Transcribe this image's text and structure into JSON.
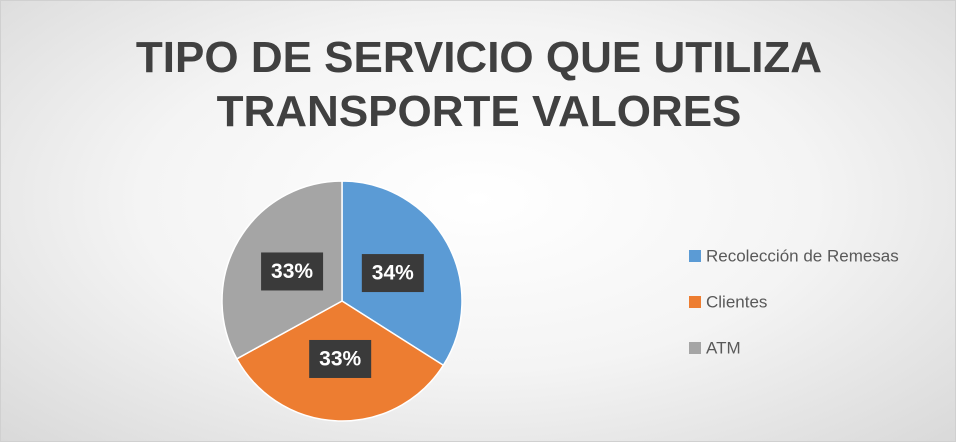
{
  "chart_data": {
    "type": "pie",
    "title": "TIPO DE SERVICIO QUE UTILIZA TRANSPORTE VALORES",
    "categories": [
      "Recolección de Remesas",
      "Clientes",
      "ATM"
    ],
    "values": [
      34,
      33,
      33
    ],
    "value_labels": [
      "34%",
      "33%",
      "33%"
    ],
    "colors": [
      "#5b9bd5",
      "#ed7d31",
      "#a5a5a5"
    ],
    "legend": "right"
  }
}
